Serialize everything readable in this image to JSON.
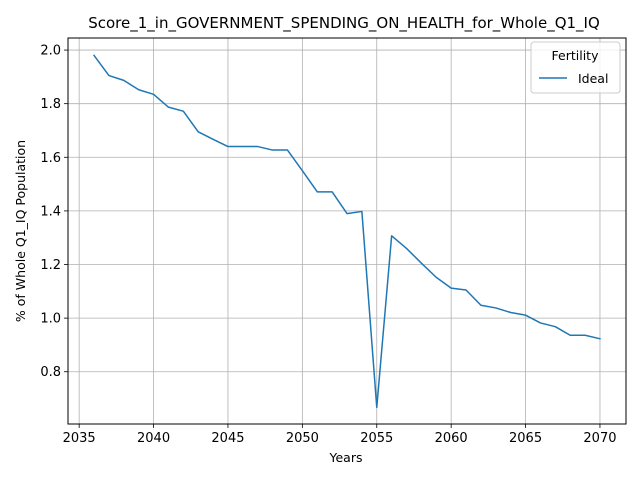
{
  "chart_data": {
    "type": "line",
    "title": "Score_1_in_GOVERNMENT_SPENDING_ON_HEALTH_for_Whole_Q1_IQ",
    "xlabel": "Years",
    "ylabel": "% of Whole Q1_IQ Population",
    "xlim": [
      2034.25,
      2071.75
    ],
    "ylim": [
      0.605,
      2.045
    ],
    "xticks": [
      2035,
      2040,
      2045,
      2050,
      2055,
      2060,
      2065,
      2070
    ],
    "yticks": [
      0.8,
      1.0,
      1.2,
      1.4,
      1.6,
      1.8,
      2.0
    ],
    "xtick_labels": [
      "2035",
      "2040",
      "2045",
      "2050",
      "2055",
      "2060",
      "2065",
      "2070"
    ],
    "ytick_labels": [
      "0.8",
      "1.0",
      "1.2",
      "1.4",
      "1.6",
      "1.8",
      "2.0"
    ],
    "grid": true,
    "legend": {
      "title": "Fertility",
      "placement": "upper-right"
    },
    "series": [
      {
        "name": "Ideal",
        "color": "#1f77b4",
        "x": [
          2036,
          2037,
          2038,
          2039,
          2040,
          2041,
          2042,
          2043,
          2044,
          2045,
          2046,
          2047,
          2048,
          2049,
          2050,
          2051,
          2052,
          2053,
          2054,
          2055,
          2056,
          2057,
          2058,
          2059,
          2060,
          2061,
          2062,
          2063,
          2064,
          2065,
          2066,
          2067,
          2068,
          2069,
          2070
        ],
        "y": [
          1.98,
          1.905,
          1.887,
          1.852,
          1.835,
          1.787,
          1.772,
          1.695,
          1.667,
          1.64,
          1.64,
          1.64,
          1.627,
          1.627,
          1.55,
          1.471,
          1.471,
          1.39,
          1.398,
          0.667,
          1.307,
          1.26,
          1.205,
          1.152,
          1.112,
          1.105,
          1.048,
          1.038,
          1.021,
          1.011,
          0.982,
          0.968,
          0.936,
          0.936,
          0.923
        ]
      }
    ]
  }
}
